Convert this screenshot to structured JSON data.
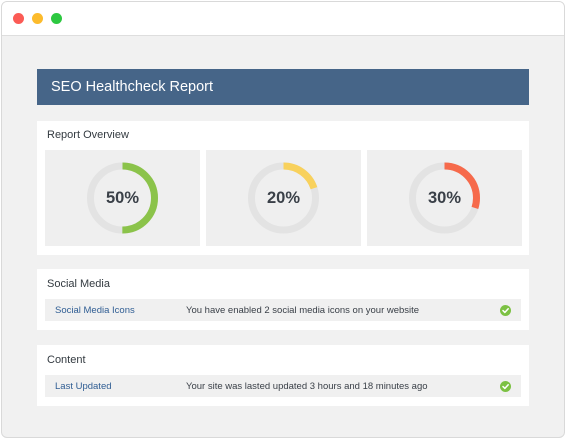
{
  "window": {
    "controls": [
      "close",
      "minimize",
      "maximize"
    ]
  },
  "header": {
    "title": "SEO Healthcheck Report"
  },
  "overview": {
    "title": "Report Overview",
    "gauges": [
      {
        "label": "50%",
        "value": 0.5,
        "color": "#8bc34a"
      },
      {
        "label": "20%",
        "value": 0.2,
        "color": "#f8d15c"
      },
      {
        "label": "30%",
        "value": 0.3,
        "color": "#f66a4b"
      }
    ],
    "track_color": "#e3e3e3"
  },
  "social": {
    "title": "Social Media",
    "row": {
      "link": "Social Media Icons",
      "description": "You have enabled 2 social media icons on your website",
      "status_icon": "check-circle-icon"
    }
  },
  "content": {
    "title": "Content",
    "row": {
      "link": "Last Updated",
      "description": "Your site was lasted updated 3 hours and 18 minutes ago",
      "status_icon": "check-circle-icon"
    }
  }
}
